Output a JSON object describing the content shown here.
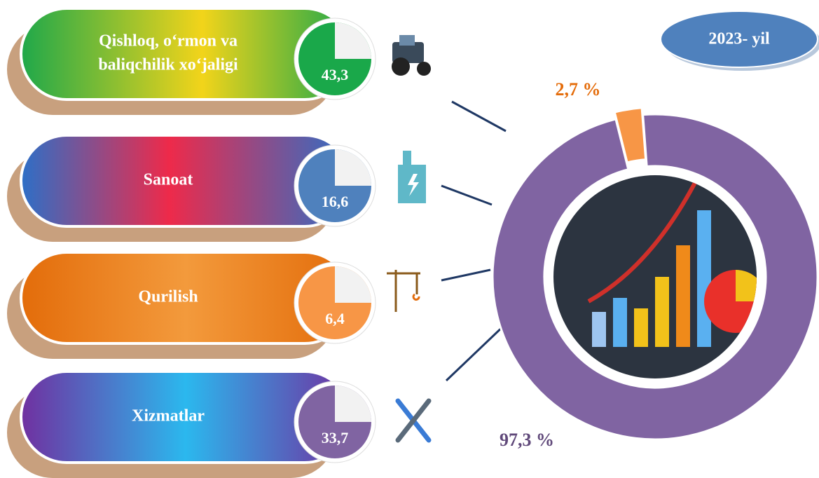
{
  "badge": "2023- yil",
  "sectors": [
    {
      "label": [
        "Qishloq, o‘rmon va",
        "baliqchilik xo‘jaligi"
      ],
      "value": 43.3,
      "value_label": "43,3",
      "color": "#1aa84a"
    },
    {
      "label": [
        "Sanoat"
      ],
      "value": 16.6,
      "value_label": "16,6",
      "color": "#4f81bd"
    },
    {
      "label": [
        "Qurilish"
      ],
      "value": 6.4,
      "value_label": "6,4",
      "color": "#f79646"
    },
    {
      "label": [
        "Xizmatlar"
      ],
      "value": 33.7,
      "value_label": "33,7",
      "color": "#8064a2"
    }
  ],
  "chart_data": {
    "type": "pie",
    "values": [
      2.7,
      97.3
    ],
    "value_labels": [
      "2,7 %",
      "97,3 %"
    ],
    "colors": [
      "#f79646",
      "#8064a2"
    ],
    "label_colors": [
      "#e46c0a",
      "#60497a"
    ]
  }
}
